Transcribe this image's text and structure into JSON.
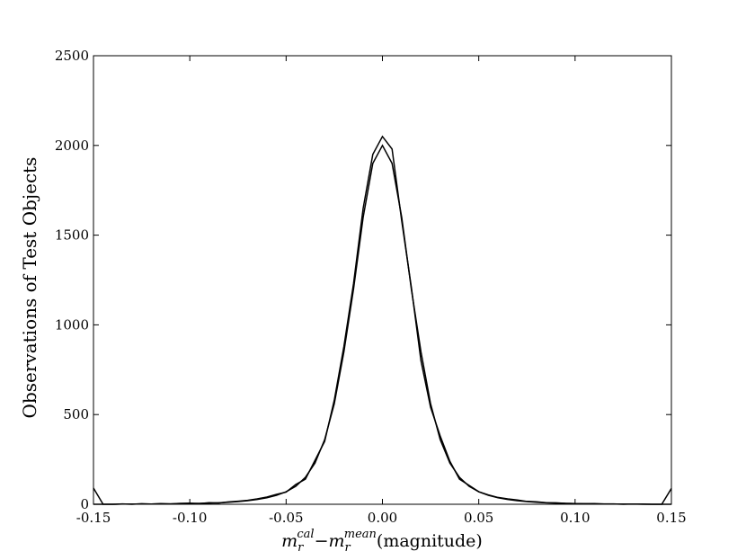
{
  "chart_data": {
    "type": "line",
    "ylabel": "Observations of Test Objects",
    "xlabel": [
      "m",
      "r",
      "cal",
      "−m",
      "r",
      "mean",
      "(magnitude)"
    ],
    "x": [
      -0.15,
      -0.145,
      -0.14,
      -0.135,
      -0.13,
      -0.125,
      -0.12,
      -0.115,
      -0.11,
      -0.105,
      -0.1,
      -0.095,
      -0.09,
      -0.085,
      -0.08,
      -0.075,
      -0.07,
      -0.065,
      -0.06,
      -0.055,
      -0.05,
      -0.045,
      -0.04,
      -0.035,
      -0.03,
      -0.025,
      -0.02,
      -0.015,
      -0.01,
      -0.005,
      0,
      0.005,
      0.01,
      0.015,
      0.02,
      0.025,
      0.03,
      0.035,
      0.04,
      0.045,
      0.05,
      0.055,
      0.06,
      0.065,
      0.07,
      0.075,
      0.08,
      0.085,
      0.09,
      0.095,
      0.1,
      0.105,
      0.11,
      0.115,
      0.12,
      0.125,
      0.13,
      0.135,
      0.14,
      0.145,
      0.15
    ],
    "series": [
      {
        "color": "#000000",
        "values": [
          90,
          0,
          0,
          2,
          0,
          3,
          1,
          4,
          2,
          5,
          6,
          4,
          9,
          7,
          13,
          17,
          22,
          30,
          40,
          55,
          68,
          110,
          140,
          245,
          350,
          580,
          880,
          1230,
          1650,
          1950,
          2050,
          1980,
          1580,
          1210,
          800,
          540,
          380,
          240,
          140,
          105,
          70,
          52,
          38,
          30,
          24,
          16,
          14,
          9,
          8,
          5,
          4,
          3,
          4,
          1,
          2,
          0,
          1,
          0,
          0,
          0,
          88
        ]
      },
      {
        "color": "#000000",
        "values": [
          0,
          0,
          0,
          1,
          1,
          1,
          1,
          2,
          2,
          3,
          4,
          5,
          6,
          8,
          11,
          15,
          20,
          27,
          36,
          50,
          70,
          100,
          150,
          230,
          360,
          560,
          850,
          1200,
          1600,
          1900,
          2000,
          1900,
          1600,
          1200,
          850,
          560,
          360,
          230,
          150,
          100,
          70,
          50,
          36,
          27,
          20,
          15,
          11,
          8,
          6,
          5,
          4,
          3,
          2,
          2,
          1,
          1,
          1,
          1,
          0,
          0,
          0
        ]
      }
    ],
    "xlim": [
      -0.15,
      0.15
    ],
    "xticks": [
      -0.15,
      {
        "value": -0.1,
        "label": "-0.10"
      },
      -0.05,
      {
        "value": 0,
        "label": "0.00"
      },
      0.05,
      {
        "value": 0.1,
        "label": "0.10"
      },
      0.15
    ],
    "ylim": [
      0,
      2500
    ],
    "yticks": [
      0,
      500,
      1000,
      1500,
      2000,
      2500
    ],
    "grid": false
  }
}
